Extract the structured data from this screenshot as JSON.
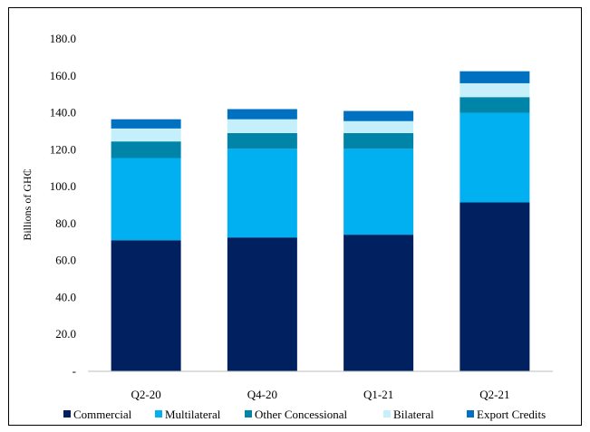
{
  "chart_data": {
    "type": "bar",
    "stacked": true,
    "categories": [
      "Q2-20",
      "Q4-20",
      "Q1-21",
      "Q2-21"
    ],
    "series": [
      {
        "name": "Commercial",
        "color": "#002060",
        "values": [
          71.0,
          72.5,
          74.0,
          91.5
        ]
      },
      {
        "name": "Multilateral",
        "color": "#00B0F0",
        "values": [
          44.5,
          48.0,
          46.5,
          48.5
        ]
      },
      {
        "name": "Other Concessional",
        "color": "#0084A8",
        "values": [
          9.0,
          8.5,
          8.5,
          8.5
        ]
      },
      {
        "name": "Bilateral",
        "color": "#C5EFFA",
        "values": [
          7.0,
          7.5,
          6.5,
          7.5
        ]
      },
      {
        "name": "Export Credits",
        "color": "#0070C0",
        "values": [
          5.0,
          5.5,
          5.5,
          6.5
        ]
      }
    ],
    "ylabel": "Billions of GH₵",
    "ylim": [
      0,
      180
    ],
    "yticks": [
      "-",
      "20.0",
      "40.0",
      "60.0",
      "80.0",
      "100.0",
      "120.0",
      "140.0",
      "160.0",
      "180.0"
    ],
    "ytick_values": [
      0,
      20,
      40,
      60,
      80,
      100,
      120,
      140,
      160,
      180
    ],
    "grid": false,
    "legend": "bottom"
  }
}
